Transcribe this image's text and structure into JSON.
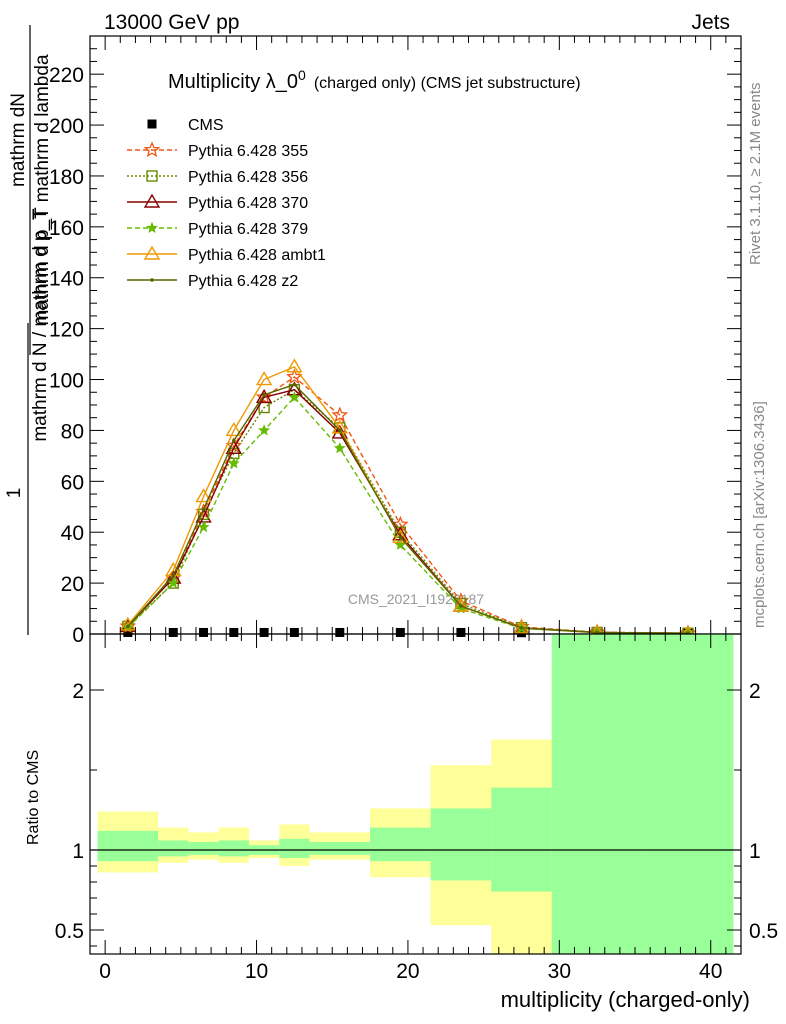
{
  "header": {
    "left": "13000 GeV pp",
    "right": "Jets"
  },
  "side_labels": {
    "rivet": "Rivet 3.1.10, ≥ 2.1M events",
    "mcplots": "mcplots.cern.ch [arXiv:1306.3436]"
  },
  "watermark": "CMS_2021_I1920187",
  "colors": {
    "cms": "#000000",
    "p355": "#ee5511",
    "p356": "#668800",
    "p370": "#880000",
    "p379": "#66bb00",
    "ambt1": "#ee9900",
    "z2": "#556600",
    "band_inner": "#99ff99",
    "band_outer": "#ffff99"
  },
  "chart_data": [
    {
      "type": "line",
      "title": "Multiplicity λ_0",
      "title_sup": "0",
      "subtitle": "(charged only) (CMS jet substructure)",
      "ylabel_numerator_top": "mathrm dN",
      "ylabel_numerator_bottom": "mathrm d p_T mathrm d lambda",
      "ylabel_den_num": "1",
      "ylabel_den_den": "mathrm d N / mathrm d p_T",
      "xlim": [
        -1,
        42
      ],
      "ylim": [
        0,
        235
      ],
      "yticks": [
        0,
        20,
        40,
        60,
        80,
        100,
        120,
        140,
        160,
        180,
        200,
        220
      ],
      "series": [
        {
          "key": "cms",
          "name": "CMS",
          "marker": "square",
          "dash": "none",
          "x": [
            1.5,
            4.5,
            6.5,
            8.5,
            10.5,
            12.5,
            15.5,
            19.5,
            23.5,
            27.5,
            32.5,
            38.5
          ],
          "y": [
            0.6,
            0.6,
            0.6,
            0.6,
            0.6,
            0.6,
            0.6,
            0.6,
            0.6,
            0.5,
            0.3,
            0.2
          ]
        },
        {
          "key": "p355",
          "name": "Pythia 6.428 355",
          "marker": "star",
          "dash": "5,3",
          "x": [
            1.5,
            4.5,
            6.5,
            8.5,
            10.5,
            12.5,
            15.5,
            19.5,
            23.5,
            27.5,
            32.5,
            38.5
          ],
          "y": [
            3,
            22,
            48,
            74,
            93,
            101,
            86,
            43,
            13,
            2.8,
            0.7,
            0.3
          ]
        },
        {
          "key": "p356",
          "name": "Pythia 6.428 356",
          "marker": "square-open",
          "dash": "2,2",
          "x": [
            1.5,
            4.5,
            6.5,
            8.5,
            10.5,
            12.5,
            15.5,
            19.5,
            23.5,
            27.5,
            32.5,
            38.5
          ],
          "y": [
            3,
            20,
            47,
            71,
            89,
            96,
            81,
            40,
            12,
            2.5,
            0.6,
            0.3
          ]
        },
        {
          "key": "p370",
          "name": "Pythia 6.428 370",
          "marker": "triangle-open",
          "dash": "none",
          "x": [
            1.5,
            4.5,
            6.5,
            8.5,
            10.5,
            12.5,
            15.5,
            19.5,
            23.5,
            27.5,
            32.5,
            38.5
          ],
          "y": [
            3,
            22,
            46,
            73,
            93,
            96,
            79,
            39,
            11,
            2.3,
            0.6,
            0.3
          ]
        },
        {
          "key": "p379",
          "name": "Pythia 6.428 379",
          "marker": "star-small",
          "dash": "5,3",
          "x": [
            1.5,
            4.5,
            6.5,
            8.5,
            10.5,
            12.5,
            15.5,
            19.5,
            23.5,
            27.5,
            32.5,
            38.5
          ],
          "y": [
            2.5,
            20,
            42,
            67,
            80,
            93,
            73,
            35,
            10,
            2.2,
            0.5,
            0.2
          ]
        },
        {
          "key": "ambt1",
          "name": "Pythia 6.428 ambt1",
          "marker": "triangle-open",
          "dash": "none",
          "x": [
            1.5,
            4.5,
            6.5,
            8.5,
            10.5,
            12.5,
            15.5,
            19.5,
            23.5,
            27.5,
            32.5,
            38.5
          ],
          "y": [
            3.5,
            25,
            54,
            80,
            100,
            105,
            81,
            38,
            11,
            2.4,
            0.6,
            0.3
          ]
        },
        {
          "key": "z2",
          "name": "Pythia 6.428 z2",
          "marker": "dot",
          "dash": "none",
          "x": [
            1.5,
            4.5,
            6.5,
            8.5,
            10.5,
            12.5,
            15.5,
            19.5,
            23.5,
            27.5,
            32.5,
            38.5
          ],
          "y": [
            3,
            23,
            49,
            76,
            94,
            98,
            80,
            38,
            11,
            2.4,
            0.6,
            0.3
          ]
        }
      ]
    },
    {
      "type": "area",
      "ylabel": "Ratio to CMS",
      "xlabel": "multiplicity (charged-only)",
      "xlim": [
        -1,
        42
      ],
      "ylim": [
        0.35,
        2.35
      ],
      "xticks": [
        0,
        10,
        20,
        30,
        40
      ],
      "yticks_labeled": [
        0.5,
        1,
        2
      ],
      "reference": 1,
      "bins": [
        {
          "x0": -0.5,
          "x1": 3.5,
          "inner": [
            0.93,
            1.12
          ],
          "outer": [
            0.86,
            1.24
          ]
        },
        {
          "x0": 3.5,
          "x1": 5.5,
          "inner": [
            0.96,
            1.06
          ],
          "outer": [
            0.92,
            1.14
          ]
        },
        {
          "x0": 5.5,
          "x1": 7.5,
          "inner": [
            0.97,
            1.05
          ],
          "outer": [
            0.94,
            1.11
          ]
        },
        {
          "x0": 7.5,
          "x1": 9.5,
          "inner": [
            0.96,
            1.06
          ],
          "outer": [
            0.92,
            1.14
          ]
        },
        {
          "x0": 9.5,
          "x1": 11.5,
          "inner": [
            0.97,
            1.03
          ],
          "outer": [
            0.95,
            1.06
          ]
        },
        {
          "x0": 11.5,
          "x1": 13.5,
          "inner": [
            0.95,
            1.07
          ],
          "outer": [
            0.9,
            1.16
          ]
        },
        {
          "x0": 13.5,
          "x1": 17.5,
          "inner": [
            0.97,
            1.05
          ],
          "outer": [
            0.94,
            1.11
          ]
        },
        {
          "x0": 17.5,
          "x1": 21.5,
          "inner": [
            0.93,
            1.14
          ],
          "outer": [
            0.83,
            1.26
          ]
        },
        {
          "x0": 21.5,
          "x1": 25.5,
          "inner": [
            0.81,
            1.26
          ],
          "outer": [
            0.53,
            1.53
          ]
        },
        {
          "x0": 25.5,
          "x1": 29.5,
          "inner": [
            0.74,
            1.39
          ],
          "outer": [
            0.2,
            1.69
          ]
        },
        {
          "x0": 29.5,
          "x1": 35.5,
          "inner": [
            0.2,
            3.0
          ],
          "outer": [
            0.2,
            2.2
          ]
        },
        {
          "x0": 35.5,
          "x1": 41.5,
          "inner": [
            0.2,
            3.0
          ],
          "outer": [
            0.2,
            3.0
          ]
        }
      ]
    }
  ]
}
